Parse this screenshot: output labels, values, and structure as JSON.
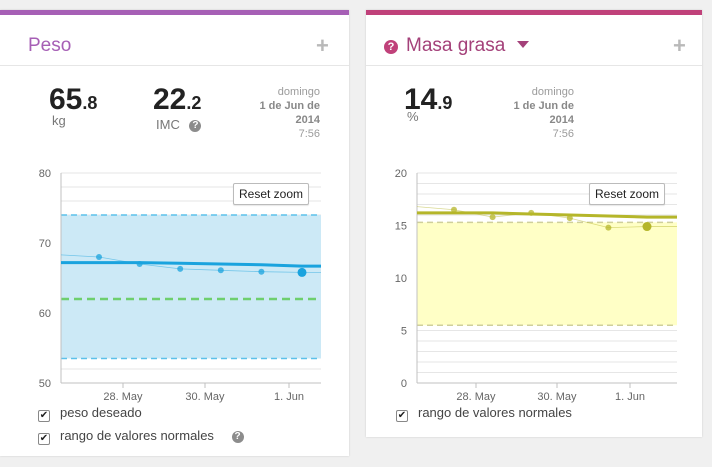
{
  "weight_card": {
    "accent": "#a65fb5",
    "title": "Peso",
    "add_label": "+",
    "weight_int": "65",
    "weight_frac": ".8",
    "weight_unit": "kg",
    "bmi_int": "22",
    "bmi_frac": ".2",
    "bmi_label": "IMC",
    "date_line1": "domingo",
    "date_line2": "1 de Jun de",
    "date_line3": "2014",
    "date_line4": "7:56",
    "reset_label": "Reset zoom",
    "legend": [
      {
        "label": "peso deseado",
        "checked": true
      },
      {
        "label": "rango de valores normales",
        "checked": true
      }
    ]
  },
  "fat_card": {
    "accent": "#c0417a",
    "title": "Masa grasa",
    "add_label": "+",
    "fat_int": "14",
    "fat_frac": ".9",
    "fat_unit": "%",
    "date_line1": "domingo",
    "date_line2": "1 de Jun de",
    "date_line3": "2014",
    "date_line4": "7:56",
    "reset_label": "Reset zoom",
    "legend": [
      {
        "label": "rango de valores normales",
        "checked": true
      }
    ]
  },
  "chart_data": [
    {
      "type": "line",
      "x_labels": [
        "28. May",
        "30. May",
        "1. Jun"
      ],
      "y_ticks": [
        50,
        60,
        70,
        80
      ],
      "ylim": [
        50,
        80
      ],
      "normal_range": [
        53.5,
        74
      ],
      "target": 62,
      "points": [
        68,
        67,
        66.3,
        66.1,
        65.9,
        65.8
      ],
      "trend": [
        67.2,
        67.2,
        67.1,
        67.0,
        66.9,
        66.7
      ],
      "colors": {
        "band": "#cce9f6",
        "line": "#1aa3de",
        "target": "#6ecf6e"
      }
    },
    {
      "type": "line",
      "x_labels": [
        "28. May",
        "30. May",
        "1. Jun"
      ],
      "y_ticks": [
        0,
        5,
        10,
        15,
        20
      ],
      "ylim": [
        0,
        20
      ],
      "normal_range": [
        5.5,
        15.3
      ],
      "points": [
        16.5,
        15.8,
        16.2,
        15.7,
        14.8,
        14.9
      ],
      "trend": [
        16.2,
        16.2,
        16.1,
        16.0,
        15.9,
        15.8
      ],
      "colors": {
        "band": "#ffffc6",
        "line": "#b5b62a"
      }
    }
  ]
}
